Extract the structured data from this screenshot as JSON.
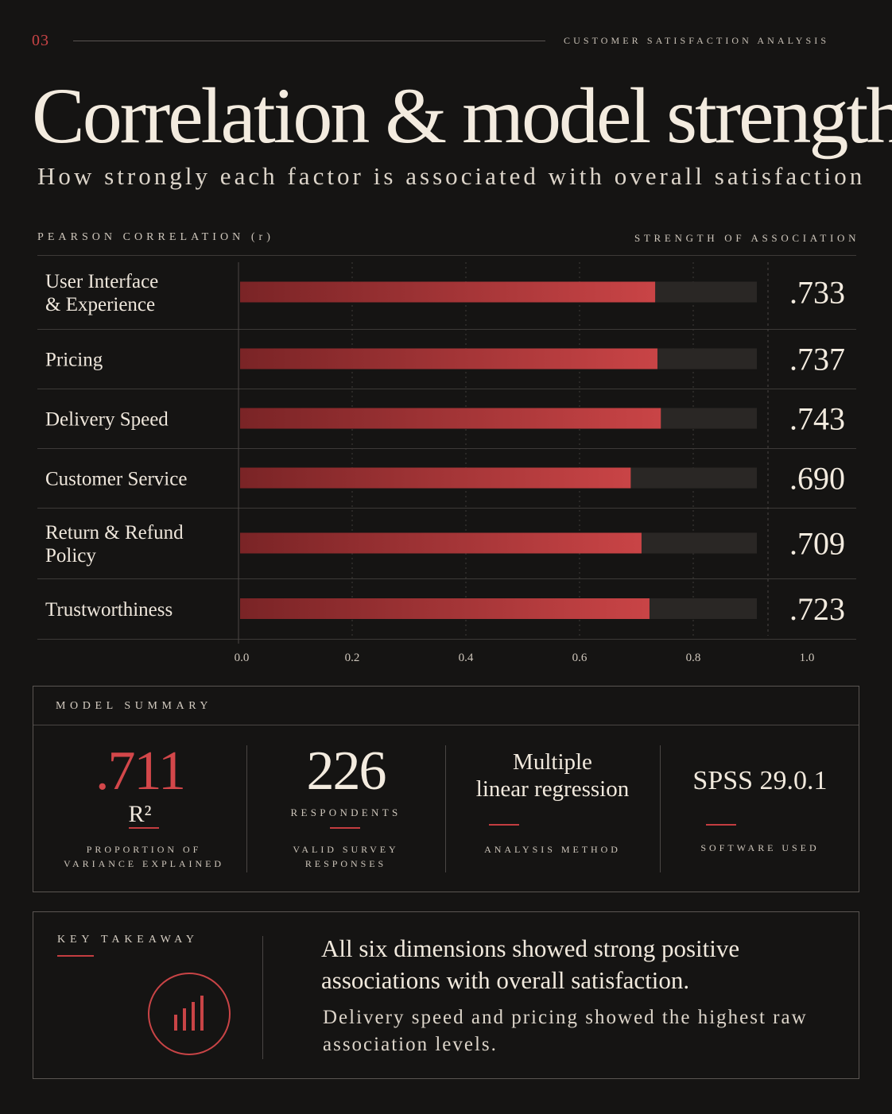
{
  "header": {
    "page_number": "03",
    "kicker": "CUSTOMER SATISFACTION ANALYSIS",
    "title": "Correlation & model strength",
    "subtitle": "How strongly each factor is associated with overall satisfaction"
  },
  "chart_header": {
    "left": "PEARSON CORRELATION (r)",
    "right": "STRENGTH OF ASSOCIATION"
  },
  "chart_data": {
    "type": "bar",
    "orientation": "horizontal",
    "categories": [
      [
        "User Interface",
        "& Experience"
      ],
      [
        "Pricing"
      ],
      [
        "Delivery Speed"
      ],
      [
        "Customer Service"
      ],
      [
        "Return & Refund",
        "Policy"
      ],
      [
        "Trustworthiness"
      ]
    ],
    "values": [
      0.733,
      0.737,
      0.743,
      0.69,
      0.709,
      0.723
    ],
    "value_labels": [
      ".733",
      ".737",
      ".743",
      ".690",
      ".709",
      ".723"
    ],
    "xlim": [
      0,
      1
    ],
    "xticks": [
      "0.0",
      "0.2",
      "0.4",
      "0.6",
      "0.8",
      "1.0"
    ],
    "grid": "vertical dashed",
    "bar_color": "#c94446",
    "track_color": "#2a2725"
  },
  "model_summary": {
    "label": "MODEL SUMMARY",
    "r2_value": ".711",
    "r2_symbol": "R²",
    "r2_caption": [
      "PROPORTION OF",
      "VARIANCE EXPLAINED"
    ],
    "respondents_value": "226",
    "respondents_label": "RESPONDENTS",
    "respondents_caption": [
      "VALID SURVEY",
      "RESPONSES"
    ],
    "method_value": [
      "Multiple",
      "linear regression"
    ],
    "method_caption": "ANALYSIS METHOD",
    "software_value": "SPSS 29.0.1",
    "software_caption": "SOFTWARE USED"
  },
  "takeaway": {
    "label": "KEY TAKEAWAY",
    "icon": "bar-chart-icon",
    "headline": "All six dimensions showed strong positive associations with overall satisfaction.",
    "body": "Delivery speed and pricing showed the highest raw association levels."
  },
  "colors": {
    "background": "#151413",
    "accent": "#c94446",
    "text": "#efe7dc"
  }
}
